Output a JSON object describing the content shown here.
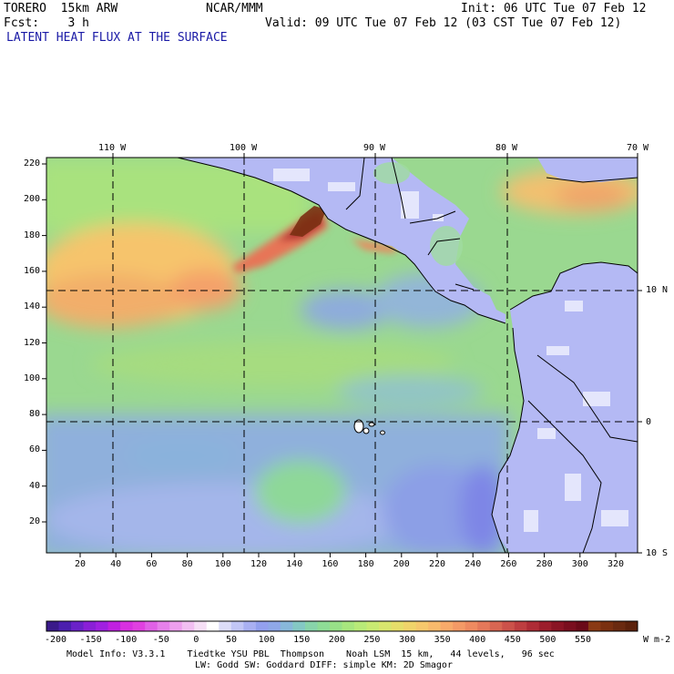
{
  "header": {
    "model": "TORERO  15km ARW",
    "org": "NCAR/MMM",
    "init": "Init: 06 UTC Tue 07 Feb 12",
    "fcst": "Fcst:    3 h",
    "valid": "Valid: 09 UTC Tue 07 Feb 12 (03 CST Tue 07 Feb 12)",
    "field_title": "LATENT HEAT FLUX AT THE SURFACE"
  },
  "map": {
    "top_lon_labels": [
      "110 W",
      "100 W",
      "90 W",
      "80 W",
      "70 W"
    ],
    "right_lat_labels": [
      "10 N",
      "0",
      "10 S"
    ],
    "left_y_ticks": [
      "220",
      "200",
      "180",
      "160",
      "140",
      "120",
      "100",
      "80",
      "60",
      "40",
      "20"
    ],
    "bottom_x_ticks": [
      "20",
      "40",
      "60",
      "80",
      "100",
      "120",
      "140",
      "160",
      "180",
      "200",
      "220",
      "240",
      "260",
      "280",
      "300",
      "320"
    ]
  },
  "colorbar": {
    "labels": [
      "-200",
      "-150",
      "-100",
      "-50",
      "0",
      "50",
      "100",
      "150",
      "200",
      "250",
      "300",
      "350",
      "400",
      "450",
      "500",
      "550"
    ],
    "units": "W m-2",
    "colors": [
      "#3a1a8a",
      "#4b1fae",
      "#6a22c8",
      "#8a1fd6",
      "#a020e0",
      "#c020e0",
      "#d830e0",
      "#e040e0",
      "#e060e6",
      "#e680ea",
      "#ee9fee",
      "#f2bff2",
      "#f6dff6",
      "#ffffff",
      "#dcdcf8",
      "#c2c6f6",
      "#a9b0f2",
      "#93a0ee",
      "#8fa8e8",
      "#88b8da",
      "#84c8c4",
      "#88d4aa",
      "#8edc96",
      "#98e088",
      "#a8e67e",
      "#b8ea78",
      "#c8ea72",
      "#d8e66e",
      "#e6de6a",
      "#f0d46a",
      "#f6c86c",
      "#f8ba6c",
      "#f8aa6a",
      "#f49a66",
      "#ee8a60",
      "#e4785a",
      "#d86652",
      "#cc524a",
      "#be3e40",
      "#ae2c36",
      "#9c1e2c",
      "#8a1424",
      "#7a0e1e",
      "#6a0a18",
      "#8a3a14",
      "#7a3010",
      "#6a2a10",
      "#5c220c"
    ]
  },
  "footer": {
    "line1": "Model Info: V3.3.1    Tiedtke YSU PBL  Thompson    Noah LSM  15 km,   44 levels,   96 sec",
    "line2": "LW: Godd SW: Goddard DIFF: simple KM: 2D Smagor"
  }
}
